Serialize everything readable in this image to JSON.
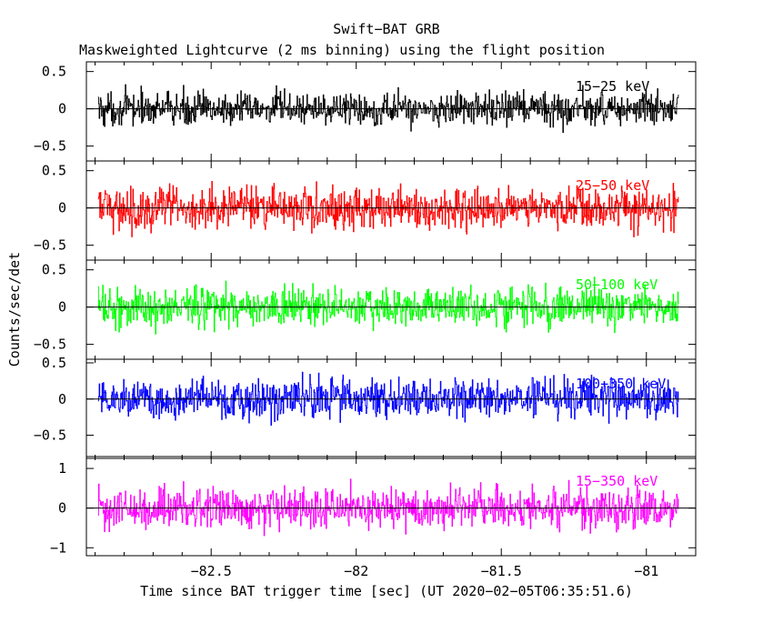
{
  "chart_data": {
    "type": "line",
    "title": "Swift−BAT GRB",
    "subtitle": "Maskweighted Lightcurve (2 ms binning) using the flight position",
    "xlabel": "Time since BAT trigger time [sec] (UT 2020−02−05T06:35:51.6)",
    "ylabel": "Counts/sec/det",
    "xlim": [
      -82.93,
      -80.83
    ],
    "x_ticks": [
      -82.5,
      -82,
      -81.5,
      -81
    ],
    "x_tick_labels": [
      "−82.5",
      "−82",
      "−81.5",
      "−81"
    ],
    "x_start": -82.89,
    "x_end": -80.89,
    "bin_width": 0.002,
    "grid": false,
    "panels": [
      {
        "band": "15−25 keV",
        "color": "#000000",
        "ylim": [
          -0.7,
          0.63
        ],
        "y_ticks": [
          -0.5,
          0,
          0.5
        ],
        "y_tick_labels": [
          "−0.5",
          "0",
          "0.5"
        ],
        "noise_amplitude": 0.2
      },
      {
        "band": "25−50 keV",
        "color": "#ff0000",
        "ylim": [
          -0.7,
          0.63
        ],
        "y_ticks": [
          -0.5,
          0,
          0.5
        ],
        "y_tick_labels": [
          "−0.5",
          "0",
          "0.5"
        ],
        "noise_amplitude": 0.25
      },
      {
        "band": "50−100 keV",
        "color": "#00ff00",
        "ylim": [
          -0.7,
          0.63
        ],
        "y_ticks": [
          -0.5,
          0,
          0.5
        ],
        "y_tick_labels": [
          "−0.5",
          "0",
          "0.5"
        ],
        "noise_amplitude": 0.24
      },
      {
        "band": "100−350 keV",
        "color": "#0000ff",
        "ylim": [
          -0.82,
          0.55
        ],
        "y_ticks": [
          -0.5,
          0,
          0.5
        ],
        "y_tick_labels": [
          "−0.5",
          "0",
          "0.5"
        ],
        "noise_amplitude": 0.24
      },
      {
        "band": "15−350 keV",
        "color": "#ff00ff",
        "ylim": [
          -1.2,
          1.3
        ],
        "y_ticks": [
          -1,
          0,
          1
        ],
        "y_tick_labels": [
          "−1",
          "0",
          "1"
        ],
        "noise_amplitude": 0.45
      }
    ]
  }
}
